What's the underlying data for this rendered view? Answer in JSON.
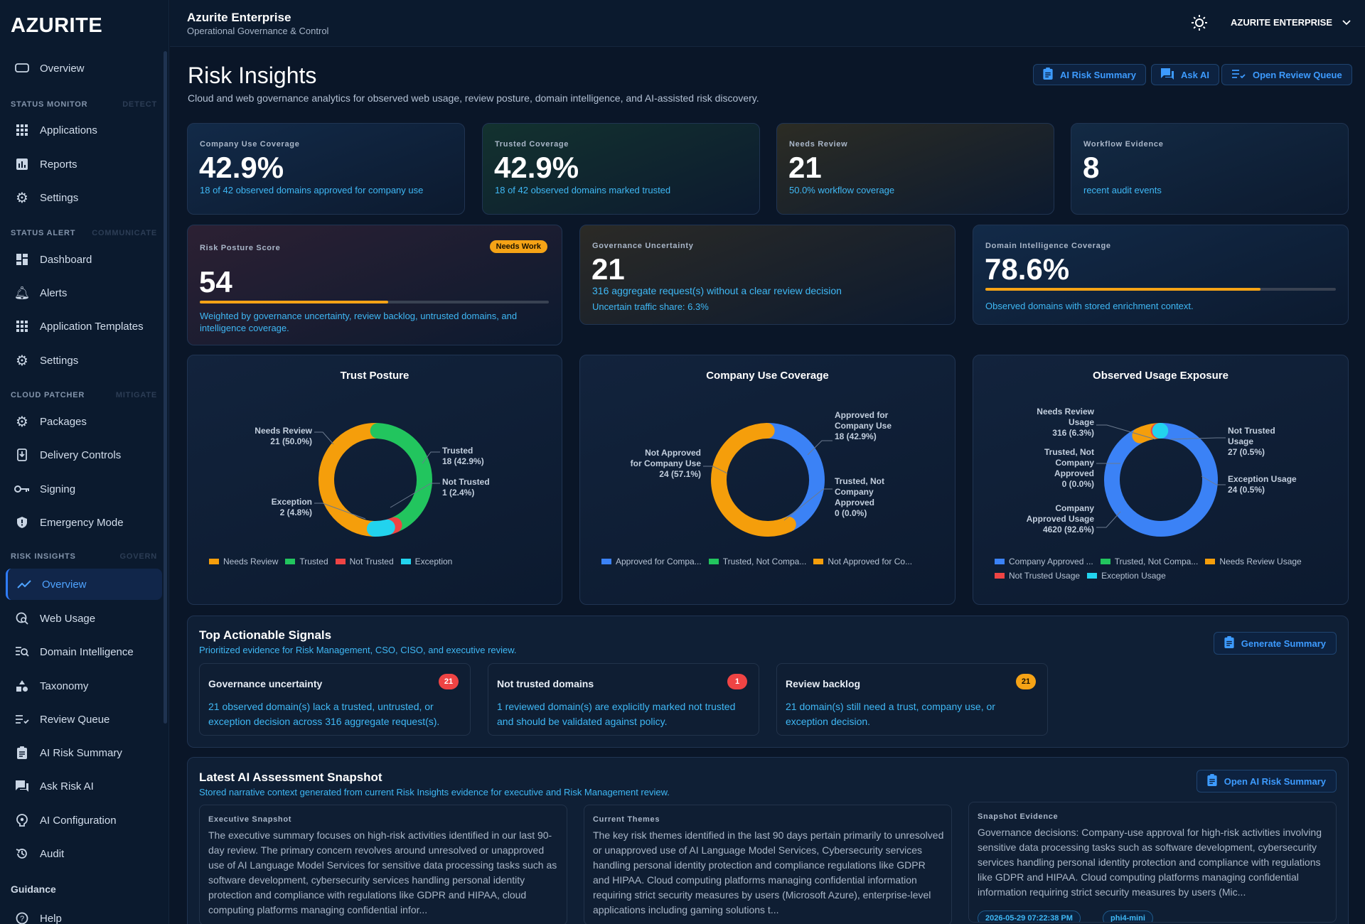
{
  "brand": "AZURITE",
  "topbar": {
    "title": "Azurite Enterprise",
    "subtitle": "Operational Governance & Control",
    "tenant": "AZURITE ENTERPRISE"
  },
  "sidebar": {
    "top_item": "Overview",
    "sections": [
      {
        "label": "STATUS MONITOR",
        "tag": "DETECT",
        "items": [
          "Applications",
          "Reports",
          "Settings"
        ]
      },
      {
        "label": "STATUS ALERT",
        "tag": "COMMUNICATE",
        "items": [
          "Dashboard",
          "Alerts",
          "Application Templates",
          "Settings"
        ]
      },
      {
        "label": "CLOUD PATCHER",
        "tag": "MITIGATE",
        "items": [
          "Packages",
          "Delivery Controls",
          "Signing",
          "Emergency Mode"
        ]
      },
      {
        "label": "RISK INSIGHTS",
        "tag": "GOVERN",
        "items": [
          "Overview",
          "Web Usage",
          "Domain Intelligence",
          "Taxonomy",
          "Review Queue",
          "AI Risk Summary",
          "Ask Risk AI",
          "AI Configuration",
          "Audit"
        ]
      }
    ],
    "guidance": "Guidance",
    "help": "Help"
  },
  "header": {
    "title": "Risk Insights",
    "subtitle": "Cloud and web governance analytics for observed web usage, review posture, domain intelligence, and AI-assisted risk discovery.",
    "buttons": [
      "AI Risk Summary",
      "Ask AI",
      "Open Review Queue"
    ]
  },
  "stats": [
    {
      "label": "Company Use Coverage",
      "value": "42.9%",
      "desc": "18 of 42 observed domains approved for company use"
    },
    {
      "label": "Trusted Coverage",
      "value": "42.9%",
      "desc": "18 of 42 observed domains marked trusted"
    },
    {
      "label": "Needs Review",
      "value": "21",
      "desc": "50.0% workflow coverage"
    },
    {
      "label": "Workflow Evidence",
      "value": "8",
      "desc": "recent audit events"
    }
  ],
  "posture": {
    "label": "Risk Posture Score",
    "badge": "Needs Work",
    "value": "54",
    "progress": 0.54,
    "desc": "Weighted by governance uncertainty, review backlog, untrusted domains, and intelligence coverage."
  },
  "uncertainty": {
    "label": "Governance Uncertainty",
    "value": "21",
    "desc": "316 aggregate request(s) without a clear review decision",
    "desc2": "Uncertain traffic share: 6.3%"
  },
  "domain_intel": {
    "label": "Domain Intelligence Coverage",
    "value": "78.6%",
    "progress": 0.786,
    "desc": "Observed domains with stored enrichment context."
  },
  "colors": {
    "orange": "#f59e0b",
    "green": "#22c55e",
    "red": "#ef4444",
    "cyan": "#22d3ee",
    "blue": "#3b82f6"
  },
  "chart_data": [
    {
      "type": "pie",
      "title": "Trust Posture",
      "slices": [
        {
          "name": "Needs Review",
          "value": 21,
          "label": "Needs Review",
          "value_label": "21 (50.0%)",
          "color": "#f59e0b"
        },
        {
          "name": "Trusted",
          "value": 18,
          "label": "Trusted",
          "value_label": "18 (42.9%)",
          "color": "#22c55e"
        },
        {
          "name": "Not Trusted",
          "value": 1,
          "label": "Not Trusted",
          "value_label": "1 (2.4%)",
          "color": "#ef4444"
        },
        {
          "name": "Exception",
          "value": 2,
          "label": "Exception",
          "value_label": "2 (4.8%)",
          "color": "#22d3ee"
        }
      ],
      "legend": [
        "Needs Review",
        "Trusted",
        "Not Trusted",
        "Exception"
      ]
    },
    {
      "type": "pie",
      "title": "Company Use Coverage",
      "slices": [
        {
          "name": "Approved for Company Use",
          "value": 18,
          "label": "Approved for Company Use",
          "value_label": "18 (42.9%)",
          "color": "#3b82f6"
        },
        {
          "name": "Trusted, Not Company Approved",
          "value": 0,
          "label": "Trusted, Not Company Approved",
          "value_label": "0 (0.0%)",
          "color": "#22c55e"
        },
        {
          "name": "Not Approved for Company Use",
          "value": 24,
          "label": "Not Approved for Company Use",
          "value_label": "24 (57.1%)",
          "color": "#f59e0b"
        }
      ],
      "legend": [
        "Approved for Compa...",
        "Trusted, Not Compa...",
        "Not Approved for Co..."
      ]
    },
    {
      "type": "pie",
      "title": "Observed Usage Exposure",
      "slices": [
        {
          "name": "Company Approved Usage",
          "value": 4620,
          "label": "Company Approved Usage",
          "value_label": "4620 (92.6%)",
          "color": "#3b82f6"
        },
        {
          "name": "Trusted, Not Company Approved",
          "value": 0,
          "label": "Trusted, Not Company Approved",
          "value_label": "0 (0.0%)",
          "color": "#22c55e"
        },
        {
          "name": "Needs Review Usage",
          "value": 316,
          "label": "Needs Review Usage",
          "value_label": "316 (6.3%)",
          "color": "#f59e0b"
        },
        {
          "name": "Not Trusted Usage",
          "value": 27,
          "label": "Not Trusted Usage",
          "value_label": "27 (0.5%)",
          "color": "#ef4444"
        },
        {
          "name": "Exception Usage",
          "value": 24,
          "label": "Exception Usage",
          "value_label": "24 (0.5%)",
          "color": "#22d3ee"
        }
      ],
      "legend": [
        "Company Approved ...",
        "Trusted, Not Compa...",
        "Needs Review Usage",
        "Not Trusted Usage",
        "Exception Usage"
      ]
    }
  ],
  "signals": {
    "title": "Top Actionable Signals",
    "subtitle": "Prioritized evidence for Risk Management, CSO, CISO, and executive review.",
    "button": "Generate Summary",
    "items": [
      {
        "title": "Governance uncertainty",
        "count": "21",
        "color": "#ef4444",
        "desc": "21 observed domain(s) lack a trusted, untrusted, or exception decision across 316 aggregate request(s)."
      },
      {
        "title": "Not trusted domains",
        "count": "1",
        "color": "#ef4444",
        "desc": "1 reviewed domain(s) are explicitly marked not trusted and should be validated against policy."
      },
      {
        "title": "Review backlog",
        "count": "21",
        "color": "#f5a316",
        "desc": "21 domain(s) still need a trust, company use, or exception decision."
      }
    ]
  },
  "snapshot": {
    "title": "Latest AI Assessment Snapshot",
    "subtitle": "Stored narrative context generated from current Risk Insights evidence for executive and Risk Management review.",
    "button": "Open AI Risk Summary",
    "panels": [
      {
        "label": "Executive Snapshot",
        "text": "The executive summary focuses on high-risk activities identified in our last 90-day review. The primary concern revolves around unresolved or unapproved use of AI Language Model Services for sensitive data processing tasks such as software development, cybersecurity services handling personal identity protection and compliance with regulations like GDPR and HIPAA, cloud computing platforms managing confidential infor..."
      },
      {
        "label": "Current Themes",
        "text": "The key risk themes identified in the last 90 days pertain primarily to unresolved or unapproved use of AI Language Model Services, Cybersecurity services handling personal identity protection and compliance regulations like GDPR and HIPAA. Cloud computing platforms managing confidential information requiring strict security measures by users (Microsoft Azure), enterprise-level applications including gaming solutions t..."
      },
      {
        "label": "Snapshot Evidence",
        "text": "Governance decisions: Company-use approval for high-risk activities involving sensitive data processing tasks such as software development, cybersecurity services handling personal identity protection and compliance with regulations like GDPR and HIPAA. Cloud computing platforms managing confidential information requiring strict security measures by users (Mic..."
      }
    ],
    "pills": [
      "2026-05-29 07:22:38 PM",
      "phi4-mini"
    ]
  }
}
